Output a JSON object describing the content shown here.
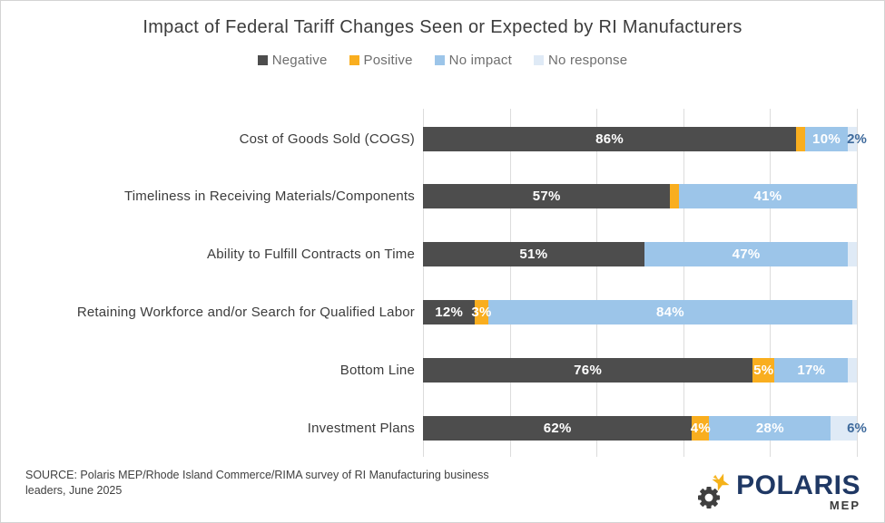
{
  "title": "Impact of Federal Tariff Changes Seen or Expected by RI Manufacturers",
  "legend": [
    {
      "key": "negative",
      "label": "Negative"
    },
    {
      "key": "positive",
      "label": "Positive"
    },
    {
      "key": "no_impact",
      "label": "No impact"
    },
    {
      "key": "no_response",
      "label": "No response"
    }
  ],
  "palette": {
    "negative": "#4d4d4d",
    "positive": "#f9ae1f",
    "no_impact": "#9cc5e9",
    "no_response": "#dfeaf6"
  },
  "outside_label_color": "#3e6a9c",
  "gridline_color": "#dcdcdc",
  "chart_data": {
    "type": "bar",
    "stacked": true,
    "orientation": "horizontal",
    "title": "Impact of Federal Tariff Changes Seen or Expected by RI Manufacturers",
    "categories": [
      "Cost of Goods Sold (COGS)",
      "Timeliness in Receiving Materials/Components",
      "Ability to Fulfill Contracts on Time",
      "Retaining Workforce and/or Search for Qualified Labor",
      "Bottom Line",
      "Investment Plans"
    ],
    "series": [
      {
        "name": "Negative",
        "values": [
          86,
          57,
          51,
          12,
          76,
          62
        ]
      },
      {
        "name": "Positive",
        "values": [
          2,
          2,
          0,
          3,
          5,
          4
        ]
      },
      {
        "name": "No impact",
        "values": [
          10,
          41,
          47,
          84,
          17,
          28
        ]
      },
      {
        "name": "No response",
        "values": [
          2,
          0,
          2,
          1,
          2,
          6
        ]
      }
    ],
    "xlim": [
      0,
      100
    ],
    "unit": "%",
    "gridlines_percent": [
      0,
      20,
      40,
      60,
      80,
      100
    ],
    "axis_tick_labels_shown": false,
    "legend_position": "top"
  },
  "rows": [
    {
      "category": "Cost of Goods Sold (COGS)",
      "segments": [
        {
          "key": "negative",
          "value": 86,
          "label": "86%"
        },
        {
          "key": "positive",
          "value": 2
        },
        {
          "key": "no_impact",
          "value": 10,
          "label": "10%"
        },
        {
          "key": "no_response",
          "value": 2
        }
      ],
      "outside_label": "2%"
    },
    {
      "category": "Timeliness in Receiving Materials/Components",
      "segments": [
        {
          "key": "negative",
          "value": 57,
          "label": "57%"
        },
        {
          "key": "positive",
          "value": 2
        },
        {
          "key": "no_impact",
          "value": 41,
          "label": "41%"
        }
      ]
    },
    {
      "category": "Ability to Fulfill Contracts on Time",
      "segments": [
        {
          "key": "negative",
          "value": 51,
          "label": "51%"
        },
        {
          "key": "no_impact",
          "value": 47,
          "label": "47%"
        },
        {
          "key": "no_response",
          "value": 2
        }
      ]
    },
    {
      "category": "Retaining Workforce and/or Search for Qualified Labor",
      "segments": [
        {
          "key": "negative",
          "value": 12,
          "label": "12%"
        },
        {
          "key": "positive",
          "value": 3,
          "label": "3%"
        },
        {
          "key": "no_impact",
          "value": 84,
          "label": "84%"
        },
        {
          "key": "no_response",
          "value": 1
        }
      ]
    },
    {
      "category": "Bottom Line",
      "segments": [
        {
          "key": "negative",
          "value": 76,
          "label": "76%"
        },
        {
          "key": "positive",
          "value": 5,
          "label": "5%"
        },
        {
          "key": "no_impact",
          "value": 17,
          "label": "17%"
        },
        {
          "key": "no_response",
          "value": 2
        }
      ]
    },
    {
      "category": "Investment Plans",
      "segments": [
        {
          "key": "negative",
          "value": 62,
          "label": "62%"
        },
        {
          "key": "positive",
          "value": 4,
          "label": "4%"
        },
        {
          "key": "no_impact",
          "value": 28,
          "label": "28%"
        },
        {
          "key": "no_response",
          "value": 6
        }
      ],
      "outside_label": "6%"
    }
  ],
  "source": {
    "line1": "SOURCE: Polaris MEP/Rhode Island Commerce/RIMA survey of RI Manufacturing business",
    "line2": "leaders, June 2025"
  },
  "logo": {
    "name": "POLARIS",
    "sub": "MEP",
    "colors": {
      "name": "#1f3864",
      "sub": "#3a3a3a",
      "gear": "#3f3f3f",
      "star": "#f5b21a"
    }
  }
}
